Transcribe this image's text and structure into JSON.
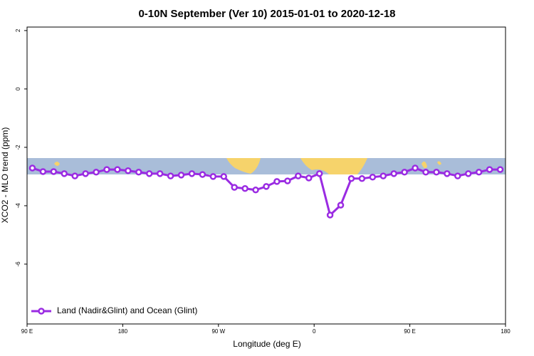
{
  "chart_data": {
    "type": "line",
    "title": "0-10N September (Ver 10)   2015-01-01 to 2020-12-18",
    "xlabel": "Longitude (deg E)",
    "ylabel": "XCO2 - MLO trend (ppm)",
    "x": [
      95,
      105,
      115,
      125,
      135,
      145,
      155,
      165,
      175,
      185,
      195,
      205,
      215,
      225,
      235,
      245,
      255,
      265,
      275,
      285,
      295,
      305,
      315,
      325,
      335,
      345,
      355,
      365,
      375,
      385,
      395,
      405,
      415,
      425,
      435,
      445,
      455,
      465,
      475,
      485,
      495,
      505,
      515,
      525,
      535
    ],
    "series": [
      {
        "name": "Land (Nadir&Glint) and Ocean (Glint)",
        "color": "#9a2be2",
        "values": [
          -2.71,
          -2.83,
          -2.83,
          -2.9,
          -2.98,
          -2.9,
          -2.85,
          -2.76,
          -2.76,
          -2.8,
          -2.85,
          -2.9,
          -2.9,
          -2.98,
          -2.95,
          -2.9,
          -2.93,
          -3.0,
          -3.0,
          -3.37,
          -3.41,
          -3.46,
          -3.34,
          -3.17,
          -3.15,
          -2.98,
          -3.05,
          -2.9,
          -4.32,
          -3.98,
          -3.07,
          -3.07,
          -3.02,
          -2.98,
          -2.9,
          -2.85,
          -2.71,
          -2.85,
          -2.85,
          -2.9,
          -2.98,
          -2.9,
          -2.85,
          -2.76,
          -2.76
        ]
      }
    ],
    "xlim": [
      90,
      540
    ],
    "xticks": [
      {
        "value": 90,
        "label": "90 E"
      },
      180,
      {
        "value": 270,
        "label": "90 W"
      },
      {
        "value": 360,
        "label": "0"
      },
      {
        "value": 450,
        "label": "90 E"
      },
      {
        "value": 540,
        "label": "180"
      }
    ],
    "ylim": [
      -8.05,
      2.12
    ],
    "yticks": [
      -6,
      -4,
      -2,
      0,
      2
    ],
    "legend": "bottom-left"
  }
}
